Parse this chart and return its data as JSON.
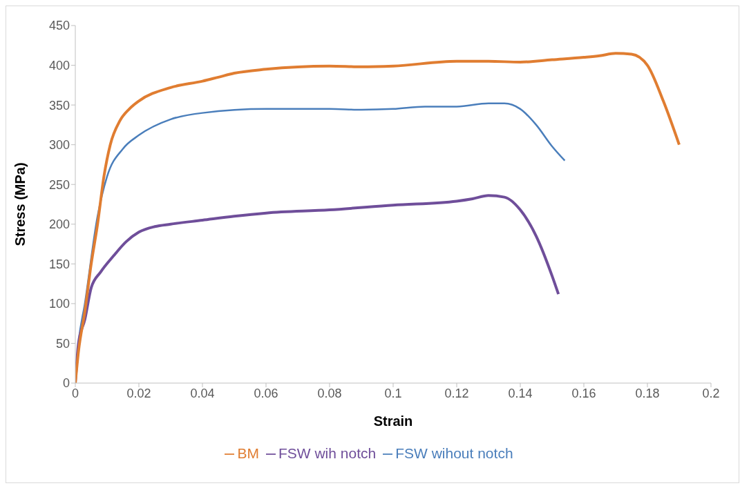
{
  "chart_data": {
    "type": "line",
    "xlabel": "Strain",
    "ylabel": "Stress  (MPa)",
    "xlim": [
      0,
      0.2
    ],
    "xticks": [
      0,
      0.02,
      0.04,
      0.06,
      0.08,
      0.1,
      0.12,
      0.14,
      0.16,
      0.18,
      0.2
    ],
    "ylim": [
      0,
      450
    ],
    "yticks": [
      0,
      50,
      100,
      150,
      200,
      250,
      300,
      350,
      400,
      450
    ],
    "grid": false,
    "legend": "bottom",
    "marker": "none",
    "line_style": "solid",
    "series": [
      {
        "name": "FSW wihout notch",
        "color": "#4a7ebb",
        "x": [
          0,
          0.001,
          0.003,
          0.007,
          0.01,
          0.015,
          0.02,
          0.03,
          0.04,
          0.06,
          0.08,
          0.09,
          0.1,
          0.11,
          0.12,
          0.13,
          0.135,
          0.14,
          0.145,
          0.15,
          0.154
        ],
        "values": [
          0,
          50,
          100,
          210,
          260,
          295,
          312,
          332,
          340,
          345,
          345,
          344,
          345,
          348,
          348,
          352,
          352,
          345,
          325,
          298,
          280
        ]
      },
      {
        "name": "FSW wih notch",
        "color": "#6f4e9a",
        "x": [
          0,
          0.001,
          0.003,
          0.005,
          0.008,
          0.012,
          0.016,
          0.02,
          0.025,
          0.03,
          0.04,
          0.05,
          0.06,
          0.08,
          0.1,
          0.12,
          0.125,
          0.13,
          0.135,
          0.14,
          0.145,
          0.15,
          0.152
        ],
        "values": [
          0,
          50,
          80,
          120,
          140,
          160,
          178,
          190,
          197,
          200,
          205,
          210,
          214,
          218,
          224,
          229,
          232,
          236,
          234,
          218,
          185,
          135,
          112
        ]
      },
      {
        "name": "BM",
        "color": "#e07d31",
        "x": [
          0,
          0.001,
          0.003,
          0.005,
          0.007,
          0.009,
          0.011,
          0.014,
          0.017,
          0.02,
          0.03,
          0.04,
          0.045,
          0.05,
          0.06,
          0.08,
          0.09,
          0.1,
          0.12,
          0.13,
          0.14,
          0.15,
          0.16,
          0.165,
          0.17,
          0.175,
          0.18,
          0.185,
          0.19
        ],
        "values": [
          0,
          40,
          90,
          150,
          200,
          260,
          300,
          330,
          345,
          355,
          372,
          380,
          385,
          390,
          395,
          399,
          398,
          399,
          405,
          405,
          404,
          407,
          410,
          412,
          415,
          414,
          400,
          355,
          300
        ]
      }
    ]
  }
}
